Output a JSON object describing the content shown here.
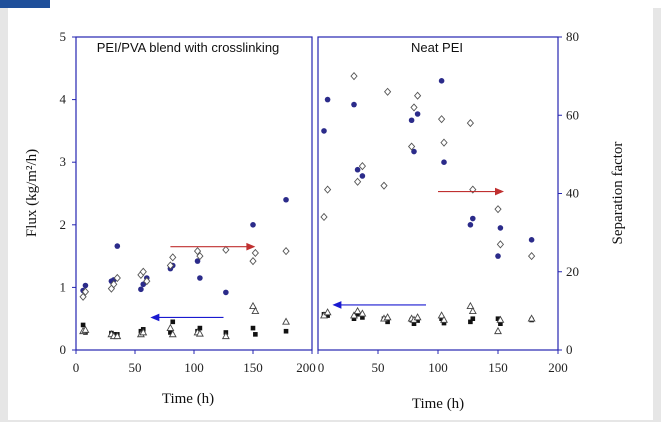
{
  "chart_data": [
    {
      "type": "scatter",
      "title": "PEI/PVA blend with crosslinking",
      "xlabel": "Time (h)",
      "ylabel": "Flux (kg/m²/h)",
      "y2label": "",
      "xlim": [
        0,
        200
      ],
      "ylim": [
        0,
        5
      ],
      "y2lim": [
        0,
        80
      ],
      "x_ticks": [
        "0",
        "50",
        "100",
        "150",
        "200"
      ],
      "y_ticks": [
        "0",
        "1",
        "2",
        "3",
        "4",
        "5"
      ],
      "grid": false,
      "legend": "none",
      "series": [
        {
          "axis": "left",
          "marker": "filled-circle",
          "color": "#2b2b8a",
          "x": [
            6,
            8,
            30,
            32,
            35,
            55,
            57,
            60,
            80,
            82,
            103,
            105,
            127,
            150,
            178
          ],
          "y": [
            0.95,
            1.03,
            1.1,
            1.12,
            1.66,
            0.97,
            1.05,
            1.15,
            1.3,
            1.35,
            1.42,
            1.15,
            0.92,
            2.0,
            2.4
          ]
        },
        {
          "axis": "left",
          "marker": "open-diamond",
          "color": "#555555",
          "x": [
            6,
            8,
            30,
            32,
            35,
            55,
            57,
            60,
            80,
            82,
            103,
            105,
            127,
            150,
            152,
            178
          ],
          "y": [
            0.85,
            0.93,
            0.98,
            1.05,
            1.15,
            1.2,
            1.25,
            1.1,
            1.35,
            1.48,
            1.58,
            1.5,
            1.6,
            1.42,
            1.55,
            1.58
          ]
        },
        {
          "axis": "left",
          "marker": "filled-square",
          "color": "#111111",
          "x": [
            6,
            8,
            30,
            32,
            35,
            55,
            57,
            80,
            82,
            103,
            105,
            127,
            150,
            152,
            178
          ],
          "y": [
            0.4,
            0.28,
            0.27,
            0.25,
            0.25,
            0.3,
            0.33,
            0.28,
            0.45,
            0.3,
            0.35,
            0.28,
            0.35,
            0.25,
            0.3
          ]
        },
        {
          "axis": "left",
          "marker": "open-triangle",
          "color": "#444444",
          "x": [
            6,
            8,
            30,
            32,
            35,
            55,
            57,
            80,
            82,
            103,
            105,
            127,
            150,
            152,
            178
          ],
          "y": [
            0.3,
            0.32,
            0.25,
            0.22,
            0.22,
            0.25,
            0.28,
            0.35,
            0.25,
            0.28,
            0.26,
            0.22,
            0.7,
            0.62,
            0.45
          ]
        }
      ],
      "arrows": [
        {
          "x1": 125,
          "y1": 0.52,
          "x2": 63,
          "y2": 0.52,
          "axis": "left",
          "color": "#1a1ad0"
        },
        {
          "x1": 80,
          "y1": 1.65,
          "x2": 152,
          "y2": 1.65,
          "axis": "left",
          "color": "#c03030"
        }
      ]
    },
    {
      "type": "scatter",
      "title": "Neat PEI",
      "xlabel": "Time (h)",
      "ylabel": "",
      "y2label": "Separation factor",
      "xlim": [
        0,
        200
      ],
      "ylim": [
        0,
        5
      ],
      "y2lim": [
        0,
        80
      ],
      "x_ticks": [
        "0",
        "50",
        "100",
        "150",
        "200"
      ],
      "y2_ticks": [
        "0",
        "20",
        "40",
        "60",
        "80"
      ],
      "grid": false,
      "legend": "none",
      "series": [
        {
          "axis": "left",
          "marker": "filled-circle",
          "color": "#2b2b8a",
          "x": [
            5,
            8,
            30,
            33,
            37,
            78,
            80,
            83,
            103,
            105,
            127,
            129,
            150,
            152,
            178
          ],
          "y": [
            3.5,
            4.0,
            3.92,
            2.88,
            2.78,
            3.67,
            3.17,
            3.77,
            4.3,
            3.0,
            2.0,
            2.1,
            1.5,
            1.95,
            1.76
          ]
        },
        {
          "axis": "right",
          "marker": "open-diamond",
          "color": "#555555",
          "x": [
            5,
            8,
            30,
            33,
            37,
            55,
            58,
            78,
            80,
            83,
            103,
            105,
            127,
            129,
            150,
            152,
            178
          ],
          "y": [
            34,
            41,
            70,
            43,
            47,
            42,
            66,
            52,
            62,
            65,
            59,
            53,
            58,
            41,
            36,
            27,
            24
          ]
        },
        {
          "axis": "left",
          "marker": "filled-square",
          "color": "#111111",
          "x": [
            5,
            8,
            30,
            33,
            37,
            55,
            58,
            78,
            80,
            83,
            103,
            105,
            127,
            129,
            150,
            152,
            178
          ],
          "y": [
            0.57,
            0.55,
            0.5,
            0.57,
            0.52,
            0.5,
            0.45,
            0.48,
            0.42,
            0.47,
            0.5,
            0.43,
            0.45,
            0.5,
            0.5,
            0.42,
            0.48
          ]
        },
        {
          "axis": "left",
          "marker": "open-triangle",
          "color": "#444444",
          "x": [
            5,
            8,
            30,
            33,
            37,
            55,
            58,
            78,
            80,
            83,
            103,
            105,
            127,
            129,
            150,
            152,
            178
          ],
          "y": [
            0.55,
            0.6,
            0.55,
            0.62,
            0.58,
            0.5,
            0.52,
            0.5,
            0.48,
            0.52,
            0.55,
            0.48,
            0.7,
            0.62,
            0.3,
            0.48,
            0.5
          ]
        }
      ],
      "arrows": [
        {
          "x1": 100,
          "y1": 40.5,
          "x2": 155,
          "y2": 40.5,
          "axis": "right",
          "color": "#c03030"
        },
        {
          "x1": 90,
          "y1": 0.72,
          "x2": 12,
          "y2": 0.72,
          "axis": "left",
          "color": "#1a1ad0"
        }
      ]
    }
  ]
}
